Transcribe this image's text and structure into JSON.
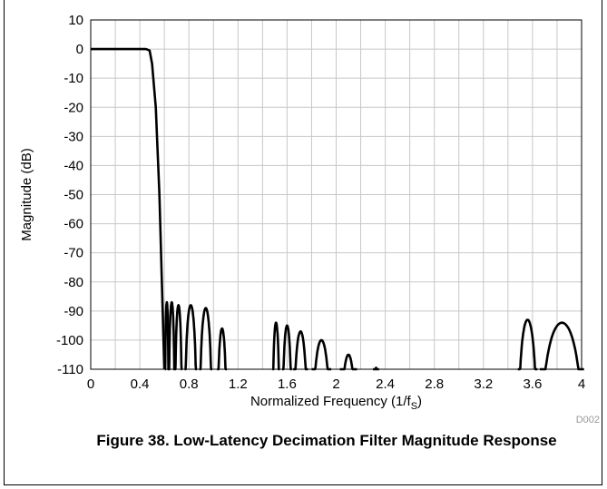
{
  "chart_data": {
    "type": "line",
    "title": "",
    "xlabel": "Normalized Frequency (1/f",
    "xlabel_sub": "S",
    "xlabel_end": ")",
    "ylabel": "Magnitude (dB)",
    "xlim": [
      0,
      4
    ],
    "ylim": [
      -110,
      10
    ],
    "xticks": [
      "0",
      "0.4",
      "0.8",
      "1.2",
      "1.6",
      "2",
      "2.4",
      "2.8",
      "3.2",
      "3.6",
      "4"
    ],
    "yticks": [
      "10",
      "0",
      "-10",
      "-20",
      "-30",
      "-40",
      "-50",
      "-60",
      "-70",
      "-80",
      "-90",
      "-100",
      "-110"
    ],
    "grid": true,
    "series": [
      {
        "color": "#000000",
        "passband": {
          "x": [
            0,
            0.45,
            0.48,
            0.5,
            0.53,
            0.56,
            0.58,
            0.6
          ],
          "y": [
            0,
            0,
            -0.5,
            -5,
            -20,
            -50,
            -80,
            -110
          ]
        },
        "lobes": [
          {
            "x0": 0.605,
            "x1": 0.635,
            "peak": -87
          },
          {
            "x0": 0.635,
            "x1": 0.685,
            "peak": -87
          },
          {
            "x0": 0.685,
            "x1": 0.745,
            "peak": -88
          },
          {
            "x0": 0.765,
            "x1": 0.865,
            "peak": -88
          },
          {
            "x0": 0.885,
            "x1": 0.99,
            "peak": -89
          },
          {
            "x0": 1.03,
            "x1": 1.11,
            "peak": -96
          },
          {
            "x0": 1.48,
            "x1": 1.54,
            "peak": -94
          },
          {
            "x0": 1.56,
            "x1": 1.64,
            "peak": -95
          },
          {
            "x0": 1.65,
            "x1": 1.77,
            "peak": -97
          },
          {
            "x0": 1.8,
            "x1": 1.96,
            "peak": -100
          },
          {
            "x0": 2.03,
            "x1": 2.17,
            "peak": -105
          },
          {
            "x0": 2.3,
            "x1": 2.35,
            "peak": -109.5
          },
          {
            "x0": 3.48,
            "x1": 3.64,
            "peak": -93
          },
          {
            "x0": 3.66,
            "x1": 4.02,
            "peak": -94
          }
        ]
      }
    ]
  },
  "document_id": "D002",
  "caption": "Figure 38. Low-Latency Decimation Filter Magnitude Response"
}
